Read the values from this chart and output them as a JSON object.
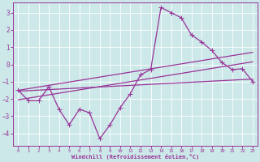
{
  "xlabel": "Windchill (Refroidissement éolien,°C)",
  "bg_color": "#cce8e8",
  "grid_color": "#b0d8d8",
  "line_color": "#993399",
  "spine_color": "#993399",
  "x_ticks": [
    0,
    1,
    2,
    3,
    4,
    5,
    6,
    7,
    8,
    9,
    10,
    11,
    12,
    13,
    14,
    15,
    16,
    17,
    18,
    19,
    20,
    21,
    22,
    23
  ],
  "y_ticks": [
    -4,
    -3,
    -2,
    -1,
    0,
    1,
    2,
    3
  ],
  "ylim": [
    -4.7,
    3.6
  ],
  "xlim": [
    -0.5,
    23.5
  ],
  "line1_x": [
    0,
    1,
    2,
    3,
    4,
    5,
    6,
    7,
    8,
    9,
    10,
    11,
    12,
    13,
    14,
    15,
    16,
    17,
    18,
    19,
    20,
    21,
    22,
    23
  ],
  "line1_y": [
    -1.5,
    -2.1,
    -2.1,
    -1.3,
    -2.6,
    -3.5,
    -2.6,
    -2.8,
    -4.3,
    -3.5,
    -2.5,
    -1.7,
    -0.6,
    -0.3,
    3.3,
    3.0,
    2.7,
    1.7,
    1.3,
    0.8,
    0.1,
    -0.3,
    -0.25,
    -1.0
  ],
  "line2_x": [
    0,
    23
  ],
  "line2_y": [
    -1.55,
    -0.85
  ],
  "line3_x": [
    0,
    23
  ],
  "line3_y": [
    -2.05,
    0.15
  ],
  "line4_x": [
    0,
    23
  ],
  "line4_y": [
    -1.5,
    0.7
  ],
  "linewidth": 0.9,
  "markersize": 2.2
}
